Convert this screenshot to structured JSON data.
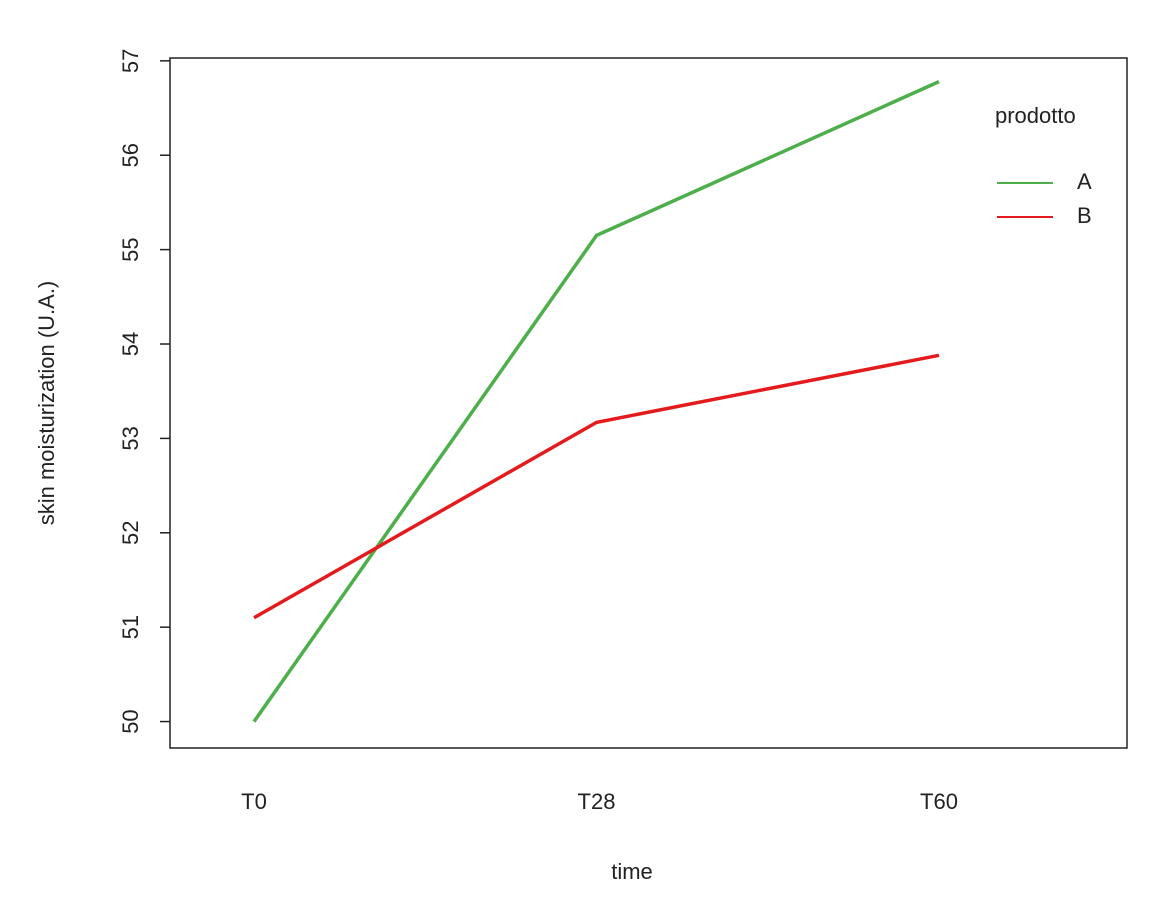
{
  "chart_data": {
    "type": "line",
    "x_label": "time",
    "y_label": "skin moisturization (U.A.)",
    "categories": [
      "T0",
      "T28",
      "T60"
    ],
    "series": [
      {
        "name": "A",
        "color": "#4daf4a",
        "values": [
          50.0,
          55.15,
          56.78
        ]
      },
      {
        "name": "B",
        "color": "#e41a1c",
        "values": [
          51.1,
          53.17,
          53.88
        ]
      }
    ],
    "legend_title": "prodotto",
    "legend_position": "top-right",
    "ylim": [
      49.72,
      57.03
    ],
    "yticks": [
      50,
      51,
      52,
      53,
      54,
      55,
      56,
      57
    ]
  }
}
